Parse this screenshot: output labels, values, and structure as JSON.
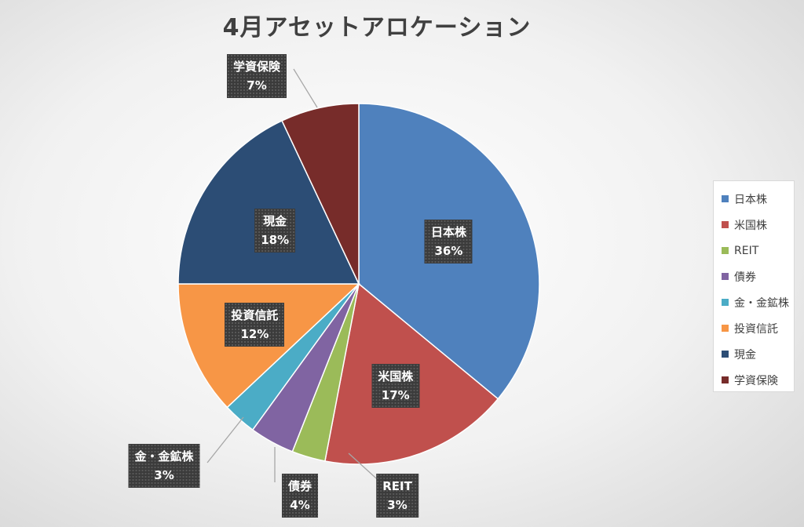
{
  "chart_data": {
    "type": "pie",
    "title": "4月アセットアロケーション",
    "legend_position": "right",
    "slices": [
      {
        "name": "日本株",
        "value": 36,
        "label": "36%",
        "color": "#4f81bd"
      },
      {
        "name": "米国株",
        "value": 17,
        "label": "17%",
        "color": "#c0504d"
      },
      {
        "name": "REIT",
        "value": 3,
        "label": "3%",
        "color": "#9bbb59"
      },
      {
        "name": "債券",
        "value": 4,
        "label": "4%",
        "color": "#8064a2"
      },
      {
        "name": "金・金鉱株",
        "value": 3,
        "label": "3%",
        "color": "#4bacc6"
      },
      {
        "name": "投資信託",
        "value": 12,
        "label": "12%",
        "color": "#f79646"
      },
      {
        "name": "現金",
        "value": 18,
        "label": "18%",
        "color": "#2c4d75"
      },
      {
        "name": "学資保険",
        "value": 7,
        "label": "7%",
        "color": "#772c2a"
      }
    ]
  }
}
